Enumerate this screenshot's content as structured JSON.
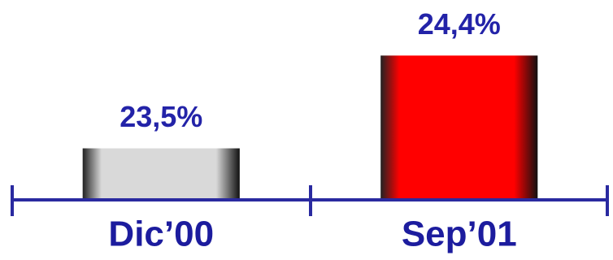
{
  "chart_data": {
    "type": "bar",
    "categories": [
      "Dic’00",
      "Sep’01"
    ],
    "values": [
      23.5,
      24.4
    ],
    "value_labels": [
      "23,5%",
      "24,4%"
    ],
    "colors": [
      "#d9d9d9",
      "#ff0000"
    ],
    "ylim": [
      23.0,
      24.6
    ]
  }
}
